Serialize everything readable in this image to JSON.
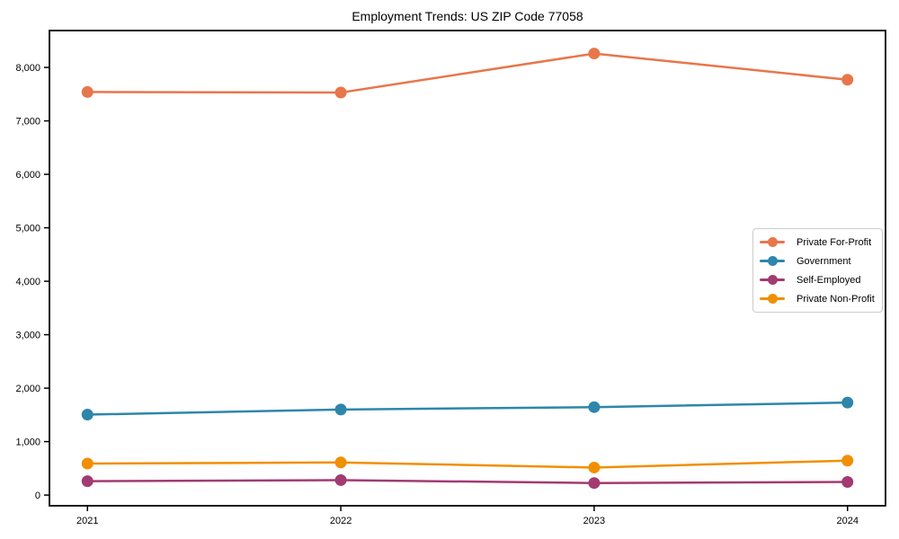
{
  "chart_data": {
    "type": "line",
    "title": "Employment Trends: US ZIP Code 77058",
    "x": [
      "2021",
      "2022",
      "2023",
      "2024"
    ],
    "series": [
      {
        "name": "Private For-Profit",
        "color": "#E8764B",
        "values": [
          7540,
          7530,
          8260,
          7770
        ]
      },
      {
        "name": "Government",
        "color": "#2E86AB",
        "values": [
          1505,
          1600,
          1645,
          1730
        ]
      },
      {
        "name": "Self-Employed",
        "color": "#A23B72",
        "values": [
          260,
          280,
          225,
          245
        ]
      },
      {
        "name": "Private Non-Profit",
        "color": "#F18F01",
        "values": [
          590,
          610,
          515,
          645
        ]
      }
    ],
    "xlabel": "",
    "ylabel": "",
    "ylim": [
      -200,
      8690
    ],
    "yticks": [
      0,
      1000,
      2000,
      3000,
      4000,
      5000,
      6000,
      7000,
      8000
    ],
    "grid": false,
    "legend_position": "center-right",
    "axis_color": "#000000",
    "background_color": "#ffffff"
  }
}
